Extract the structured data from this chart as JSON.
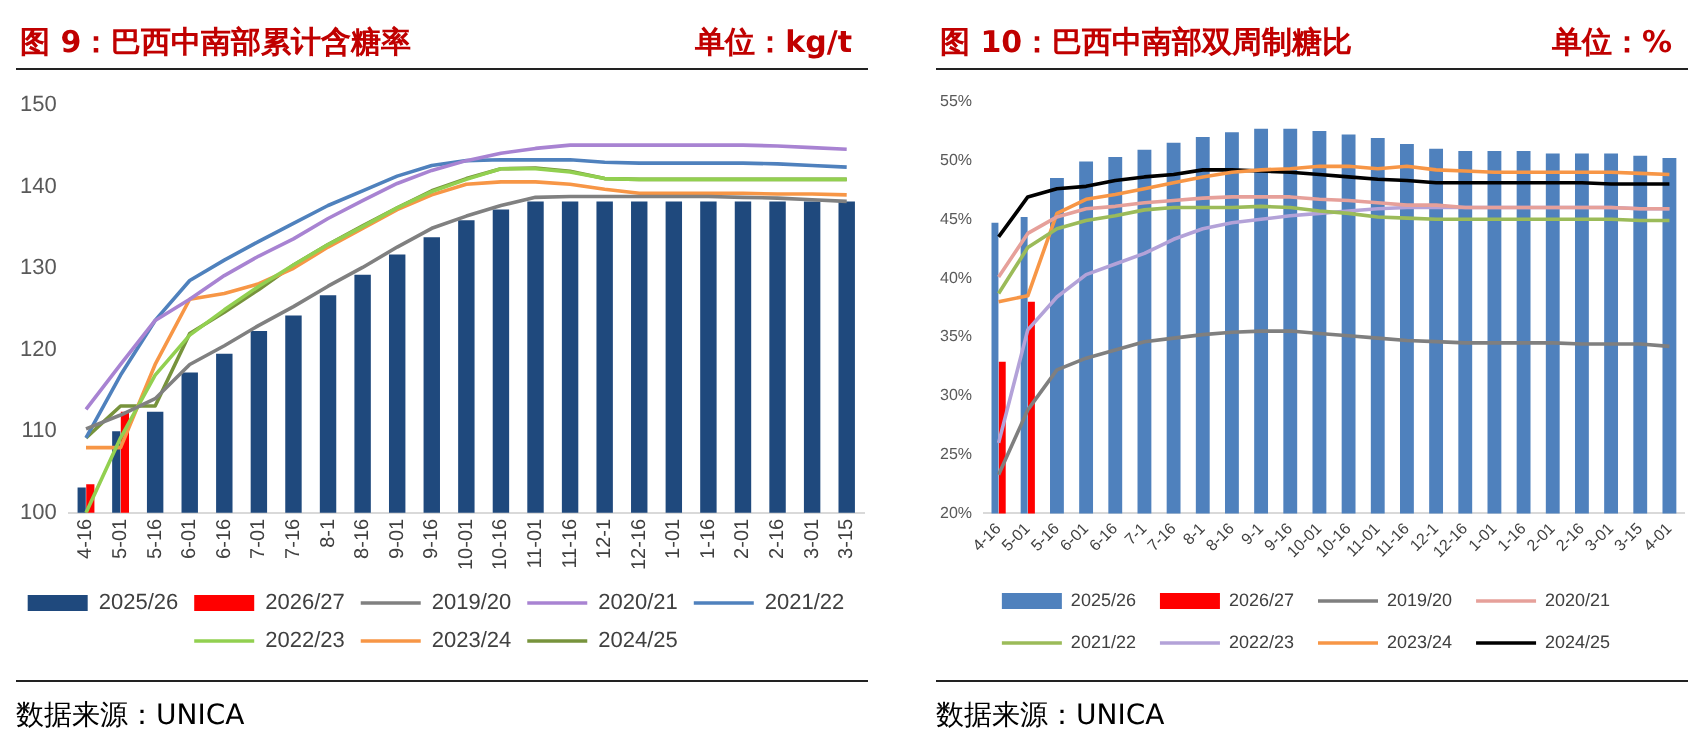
{
  "chart_data": [
    {
      "type": "bar",
      "title": "图 9：巴西中南部累计含糖率",
      "subtitle": "单位：kg/t",
      "categories": [
        "4-16",
        "5-01",
        "5-16",
        "6-01",
        "6-16",
        "7-01",
        "7-16",
        "8-1",
        "8-16",
        "9-01",
        "9-16",
        "10-01",
        "10-16",
        "11-01",
        "11-16",
        "12-1",
        "12-16",
        "1-01",
        "1-16",
        "2-01",
        "2-16",
        "3-01",
        "3-15"
      ],
      "series": [
        {
          "name": "2025/26",
          "type": "bar",
          "color": "#1f497d",
          "values": [
            103.1,
            110,
            112.4,
            117.2,
            119.5,
            122.3,
            124.2,
            126.7,
            129.2,
            131.7,
            133.8,
            135.9,
            137.2,
            138.2,
            138.2,
            138.2,
            138.2,
            138.2,
            138.2,
            138.2,
            138.2,
            138.2,
            138.2
          ]
        },
        {
          "name": "2026/27",
          "type": "bar",
          "color": "#ff0000",
          "values": [
            103.5,
            112.4,
            null,
            null,
            null,
            null,
            null,
            null,
            null,
            null,
            null,
            null,
            null,
            null,
            null,
            null,
            null,
            null,
            null,
            null,
            null,
            null,
            null
          ]
        },
        {
          "name": "2019/20",
          "type": "line",
          "color": "#808080",
          "values": [
            110.3,
            112,
            114,
            118.2,
            120.5,
            123,
            125.3,
            127.8,
            130.1,
            132.6,
            134.9,
            136.4,
            137.7,
            138.7,
            138.8,
            138.8,
            138.8,
            138.8,
            138.8,
            138.7,
            138.6,
            138.4,
            138.2
          ]
        },
        {
          "name": "2020/21",
          "type": "line",
          "color": "#a883d2",
          "values": [
            112.7,
            118.2,
            123.6,
            126.2,
            129.1,
            131.5,
            133.6,
            136.1,
            138.3,
            140.4,
            142,
            143.2,
            144.1,
            144.7,
            145.1,
            145.1,
            145.1,
            145.1,
            145.1,
            145.1,
            145,
            144.8,
            144.6
          ]
        },
        {
          "name": "2021/22",
          "type": "line",
          "color": "#4f81bd",
          "values": [
            109.2,
            116.9,
            123.6,
            128.5,
            131,
            133.3,
            135.5,
            137.7,
            139.5,
            141.3,
            142.6,
            143.2,
            143.3,
            143.3,
            143.3,
            143,
            142.9,
            142.9,
            142.9,
            142.9,
            142.8,
            142.6,
            142.4
          ]
        },
        {
          "name": "2022/23",
          "type": "line",
          "color": "#92d050",
          "values": [
            100,
            109.2,
            116.9,
            121.8,
            124.9,
            127.8,
            130.4,
            132.9,
            135.1,
            137.4,
            139.4,
            140.9,
            142.2,
            142.2,
            141.8,
            141,
            140.9,
            140.9,
            140.9,
            140.9,
            140.9,
            140.9,
            140.9
          ]
        },
        {
          "name": "2023/24",
          "type": "line",
          "color": "#f79646",
          "values": [
            108,
            108,
            118.2,
            126.2,
            126.9,
            128.1,
            130,
            132.6,
            134.9,
            137.2,
            139,
            140.3,
            140.6,
            140.6,
            140.3,
            139.7,
            139.2,
            139.2,
            139.2,
            139.2,
            139.1,
            139.1,
            139
          ]
        },
        {
          "name": "2024/25",
          "type": "line",
          "color": "#77933c",
          "values": [
            109.2,
            113.1,
            113.1,
            122,
            124.6,
            127.4,
            130.4,
            132.9,
            135.2,
            137.4,
            139.5,
            141,
            142.2,
            142.3,
            141.9,
            141,
            140.9,
            140.9,
            140.9,
            140.9,
            140.9,
            140.9,
            140.9
          ]
        }
      ],
      "ylim": [
        100,
        150
      ],
      "yticks": [
        100,
        110,
        120,
        130,
        140,
        150
      ],
      "legend": "bottom",
      "marker": "none",
      "annotations": [
        "数据来源：UNICA"
      ]
    },
    {
      "type": "bar",
      "title": "图 10：巴西中南部双周制糖比",
      "subtitle": "单位：%",
      "categories": [
        "4-16",
        "5-01",
        "5-16",
        "6-01",
        "6-16",
        "7-1",
        "7-16",
        "8-1",
        "8-16",
        "9-1",
        "9-16",
        "10-01",
        "10-16",
        "11-01",
        "11-16",
        "12-1",
        "12-16",
        "1-01",
        "1-16",
        "2-01",
        "2-16",
        "3-01",
        "3-15",
        "4-01"
      ],
      "series": [
        {
          "name": "2025/26",
          "type": "bar",
          "color": "#4f81bd",
          "values": [
            44.7,
            45.2,
            48.5,
            49.9,
            50.3,
            50.9,
            51.5,
            52,
            52.4,
            52.7,
            52.7,
            52.5,
            52.2,
            51.9,
            51.4,
            51,
            50.8,
            50.8,
            50.8,
            50.6,
            50.6,
            50.6,
            50.4,
            50.2
          ]
        },
        {
          "name": "2026/27",
          "type": "bar",
          "color": "#ff0000",
          "values": [
            32.9,
            38,
            null,
            null,
            null,
            null,
            null,
            null,
            null,
            null,
            null,
            null,
            null,
            null,
            null,
            null,
            null,
            null,
            null,
            null,
            null,
            null,
            null,
            null
          ]
        },
        {
          "name": "2019/20",
          "type": "line",
          "color": "#7f7f7f",
          "values": [
            23.3,
            28.8,
            32.2,
            33.2,
            33.9,
            34.6,
            34.9,
            35.2,
            35.4,
            35.5,
            35.5,
            35.3,
            35.1,
            34.9,
            34.7,
            34.6,
            34.5,
            34.5,
            34.5,
            34.5,
            34.4,
            34.4,
            34.4,
            34.2
          ]
        },
        {
          "name": "2020/21",
          "type": "line",
          "color": "#e6a09a",
          "values": [
            40.1,
            43.8,
            45.2,
            45.9,
            46.1,
            46.4,
            46.6,
            46.8,
            46.9,
            46.9,
            46.9,
            46.7,
            46.6,
            46.4,
            46.2,
            46.2,
            46,
            46,
            46,
            46,
            46,
            46,
            45.9,
            45.9
          ]
        },
        {
          "name": "2021/22",
          "type": "line",
          "color": "#9bbb59",
          "values": [
            38.7,
            42.6,
            44.2,
            44.9,
            45.3,
            45.8,
            46,
            46,
            46,
            46.1,
            46,
            45.7,
            45.5,
            45.2,
            45.1,
            45,
            45,
            45,
            45,
            45,
            45,
            45,
            44.9,
            44.9
          ]
        },
        {
          "name": "2022/23",
          "type": "line",
          "color": "#b3a2d8",
          "values": [
            26,
            35.6,
            38.4,
            40.3,
            41.2,
            42.1,
            43.3,
            44.2,
            44.7,
            45,
            45.3,
            45.5,
            45.7,
            45.9,
            46,
            46,
            46,
            46,
            46,
            46,
            46,
            46,
            45.9,
            45.9
          ]
        },
        {
          "name": "2023/24",
          "type": "line",
          "color": "#f79646",
          "values": [
            38,
            38.5,
            45.5,
            46.7,
            47.1,
            47.6,
            48.1,
            48.6,
            49,
            49.2,
            49.3,
            49.5,
            49.5,
            49.3,
            49.5,
            49.2,
            49.1,
            49,
            49,
            49,
            49,
            49,
            48.9,
            48.8
          ]
        },
        {
          "name": "2024/25",
          "type": "line",
          "color": "#000000",
          "values": [
            43.5,
            46.9,
            47.6,
            47.8,
            48.3,
            48.6,
            48.8,
            49.2,
            49.2,
            49.1,
            49,
            48.8,
            48.6,
            48.4,
            48.3,
            48.1,
            48.1,
            48.1,
            48.1,
            48.1,
            48.1,
            48,
            48,
            48
          ]
        }
      ],
      "ylim": [
        20,
        55
      ],
      "yticks": [
        {
          "value": 20,
          "label": "20%"
        },
        {
          "value": 25,
          "label": "25%"
        },
        {
          "value": 30,
          "label": "30%"
        },
        {
          "value": 35,
          "label": "35%"
        },
        {
          "value": 40,
          "label": "40%"
        },
        {
          "value": 45,
          "label": "45%"
        },
        {
          "value": 50,
          "label": "50%"
        },
        {
          "value": 55,
          "label": "55%"
        }
      ],
      "legend": "bottom",
      "marker": "none",
      "annotations": [
        "数据来源：UNICA"
      ]
    }
  ]
}
